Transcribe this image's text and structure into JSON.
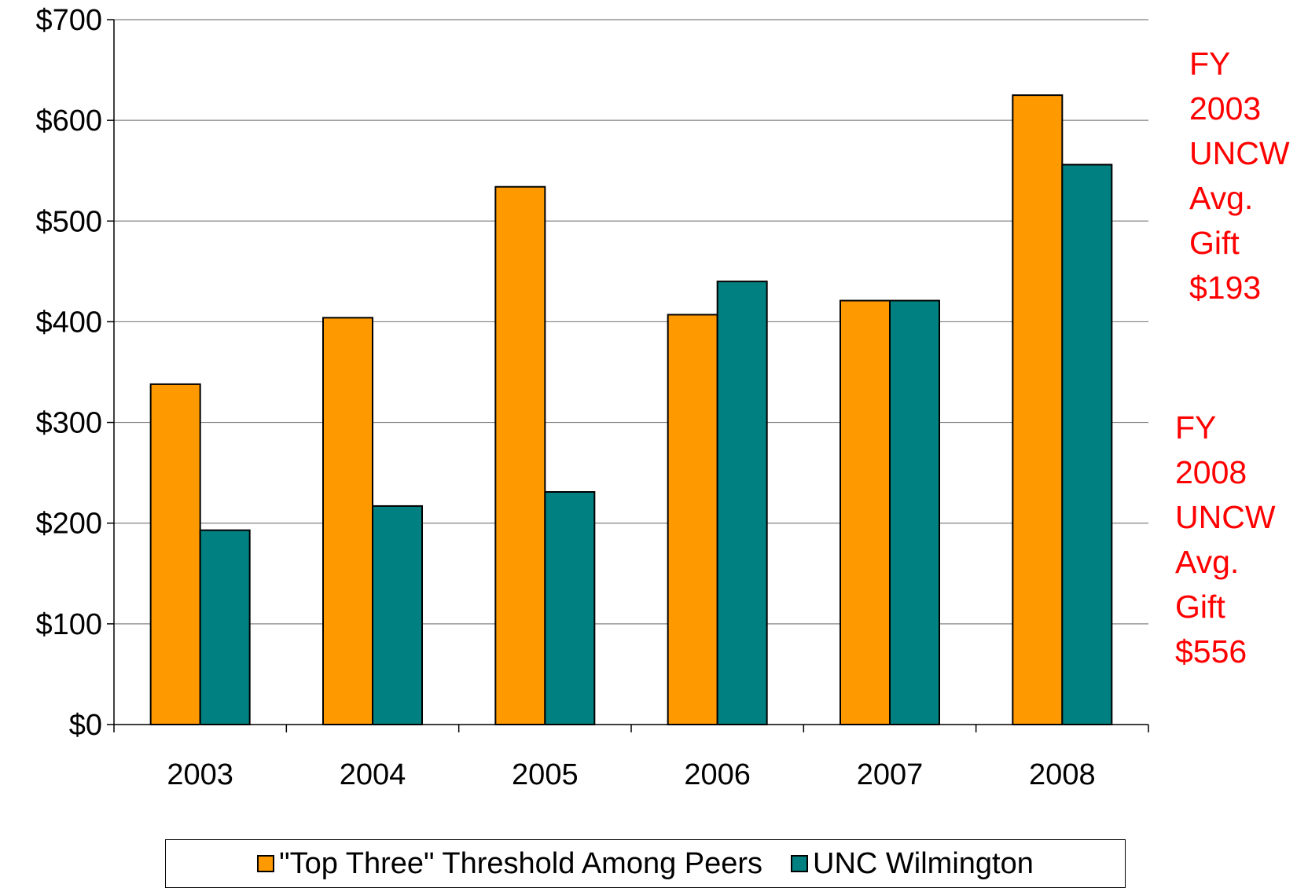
{
  "chart_data": {
    "type": "bar",
    "title": "",
    "xlabel": "",
    "ylabel": "",
    "categories": [
      "2003",
      "2004",
      "2005",
      "2006",
      "2007",
      "2008"
    ],
    "ylim": [
      0,
      700
    ],
    "yticks": [
      0,
      100,
      200,
      300,
      400,
      500,
      600,
      700
    ],
    "ytick_labels": [
      "$0",
      "$100",
      "$200",
      "$300",
      "$400",
      "$500",
      "$600",
      "$700"
    ],
    "grid": true,
    "legend_position": "bottom",
    "series": [
      {
        "name": "\"Top Three\" Threshold Among Peers",
        "color": "#ff9900",
        "values": [
          338,
          404,
          534,
          407,
          421,
          625
        ]
      },
      {
        "name": "UNC Wilmington",
        "color": "#008080",
        "values": [
          193,
          217,
          231,
          440,
          421,
          556
        ]
      }
    ],
    "annotations": [
      {
        "id": "fy2003",
        "color": "#ff0000",
        "lines": [
          "FY",
          "2003",
          "UNCW",
          "Avg.",
          "Gift",
          "$193"
        ]
      },
      {
        "id": "fy2008",
        "color": "#ff0000",
        "lines": [
          "FY",
          "2008",
          "UNCW",
          "Avg.",
          "Gift",
          "$556"
        ]
      }
    ]
  }
}
